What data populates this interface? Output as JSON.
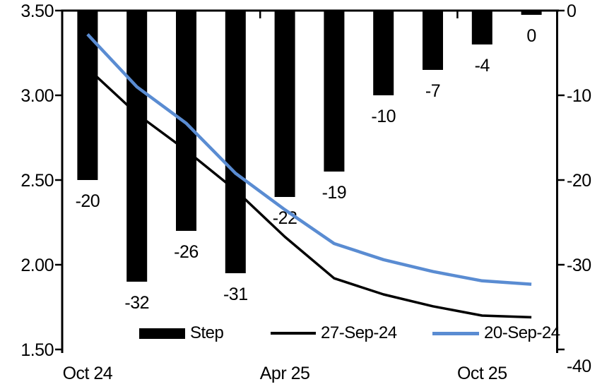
{
  "chart_data": {
    "type": "combo-bar-line",
    "title": "",
    "n_categories": 10,
    "bar_series": {
      "name": "Step",
      "axis": "right",
      "color": "#000000",
      "values": [
        -20,
        -32,
        -26,
        -31,
        -22,
        -19,
        -10,
        -7,
        -4,
        -0.5
      ],
      "labels": [
        "-20",
        "-32",
        "-26",
        "-31",
        "-22",
        "-19",
        "-10",
        "-7",
        "-4",
        "0"
      ]
    },
    "line_series": [
      {
        "name": "27-Sep-24",
        "axis": "left",
        "color": "#000000",
        "stroke_width": 3.5,
        "values": [
          3.16,
          2.89,
          2.675,
          2.44,
          2.165,
          1.92,
          1.825,
          1.755,
          1.7,
          1.69
        ]
      },
      {
        "name": "20-Sep-24",
        "axis": "left",
        "color": "#5A8CD2",
        "stroke_width": 4.5,
        "values": [
          3.36,
          3.05,
          2.835,
          2.54,
          2.325,
          2.125,
          2.03,
          1.96,
          1.905,
          1.885
        ]
      }
    ],
    "left_axis": {
      "min": 1.5,
      "max": 3.5,
      "tick_values": [
        3.5,
        3.0,
        2.5,
        2.0,
        1.5
      ],
      "tick_labels": [
        "3.50",
        "3.00",
        "2.50",
        "2.00",
        "1.50"
      ]
    },
    "right_axis": {
      "min": -40,
      "max": 0,
      "tick_values": [
        0,
        -10,
        -20,
        -30,
        -40
      ],
      "tick_labels": [
        "0",
        "-10",
        "-20",
        "-30",
        "-40"
      ],
      "label_dy": [
        0,
        0,
        0,
        0,
        23
      ]
    },
    "x_axis": {
      "labels": [
        "Oct 24",
        "Apr 25",
        "Oct 25"
      ],
      "label_cat_positions": [
        0,
        4,
        8
      ],
      "boundary_tick_indices": [
        4,
        8
      ]
    },
    "legend": {
      "items": [
        "Step",
        "27-Sep-24",
        "20-Sep-24"
      ]
    },
    "grid": "off",
    "legend_position": "bottom-inside"
  }
}
